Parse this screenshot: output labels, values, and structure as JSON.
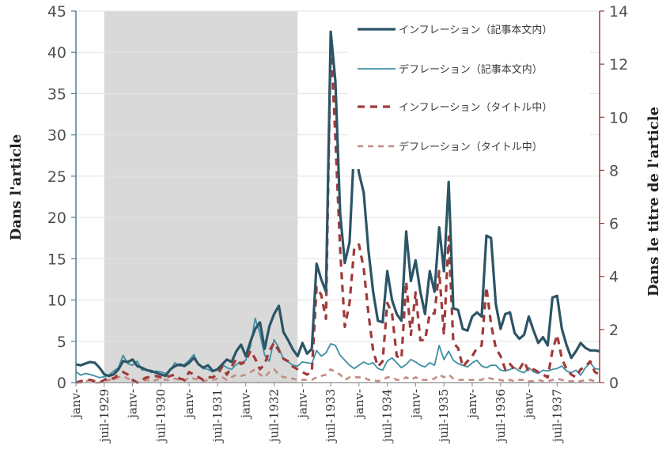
{
  "chart_data": {
    "type": "line",
    "xlabel": "",
    "ylabel_left": "Dans l'article",
    "ylabel_right": "Dans le titre de l'article",
    "ylim_left": [
      0,
      45
    ],
    "ylim_right": [
      0,
      14
    ],
    "yticks_left": [
      0,
      5,
      10,
      15,
      20,
      25,
      30,
      35,
      40,
      45
    ],
    "yticks_right": [
      0,
      2,
      4,
      6,
      8,
      10,
      12,
      14
    ],
    "x_start": "1929-01",
    "x_end": "1937-12",
    "x_tick_labels": [
      "janv-",
      "juil-1929",
      "janv-",
      "juil-1930",
      "janv-",
      "juil-1931",
      "janv-",
      "juil-1932",
      "janv-",
      "juil-1933",
      "janv-",
      "juil-1934",
      "janv-",
      "juil-1935",
      "janv-",
      "juil-1936",
      "janv-",
      "juil-1937"
    ],
    "shaded_region": {
      "start": "1929-07",
      "end": "1932-12"
    },
    "grid": "horizontal",
    "legend_position": "top-right",
    "series": [
      {
        "name": "インフレーション（記事本文内）",
        "axis": "left",
        "color": "#2c5566",
        "style": "solid-thick",
        "values": [
          2.2,
          2.1,
          2.3,
          2.5,
          2.4,
          1.8,
          1.0,
          0.8,
          1.0,
          1.6,
          2.6,
          2.5,
          2.8,
          2.0,
          1.8,
          1.5,
          1.4,
          1.2,
          1.0,
          0.8,
          1.6,
          2.0,
          2.2,
          2.0,
          2.4,
          3.0,
          2.2,
          1.8,
          2.1,
          1.4,
          1.6,
          2.2,
          2.8,
          2.5,
          3.8,
          4.6,
          3.2,
          5.0,
          6.5,
          7.3,
          4.1,
          6.8,
          8.3,
          9.3,
          6.1,
          5.1,
          4.0,
          3.2,
          4.8,
          3.5,
          4.1,
          14.4,
          12.5,
          11.0,
          42.5,
          36.5,
          20.5,
          14.5,
          17.0,
          29.0,
          25.4,
          23.0,
          16.0,
          11.0,
          7.5,
          7.3,
          13.5,
          10.0,
          8.3,
          7.5,
          18.3,
          12.3,
          14.8,
          11.0,
          8.3,
          13.5,
          11.0,
          18.8,
          13.5,
          24.3,
          9.0,
          8.8,
          6.5,
          6.3,
          8.0,
          8.5,
          8.0,
          17.8,
          17.5,
          9.5,
          6.5,
          8.3,
          8.5,
          6.0,
          5.3,
          5.8,
          8.0,
          6.3,
          4.8,
          5.5,
          4.5,
          10.3,
          10.5,
          6.5,
          4.5,
          3.0,
          3.8,
          4.8,
          4.2,
          3.9,
          3.9,
          3.8
        ]
      },
      {
        "name": "デフレーション（記事本文内）",
        "axis": "left",
        "color": "#3e8fa3",
        "style": "solid-thin",
        "values": [
          1.3,
          0.9,
          1.1,
          1.0,
          0.8,
          0.6,
          0.7,
          0.9,
          1.4,
          1.8,
          3.3,
          2.3,
          2.1,
          2.6,
          1.5,
          1.6,
          1.2,
          1.4,
          1.3,
          1.1,
          1.5,
          2.4,
          2.0,
          2.2,
          2.7,
          3.4,
          2.2,
          1.7,
          1.6,
          1.3,
          1.7,
          2.2,
          1.8,
          1.6,
          2.2,
          2.4,
          2.7,
          4.4,
          7.8,
          5.9,
          3.3,
          2.6,
          5.2,
          4.2,
          2.8,
          2.5,
          2.1,
          2.0,
          2.5,
          2.4,
          2.3,
          3.9,
          3.2,
          3.6,
          4.7,
          4.5,
          3.3,
          2.7,
          2.1,
          1.7,
          2.1,
          2.5,
          2.2,
          2.4,
          1.7,
          1.5,
          2.6,
          3.0,
          2.4,
          1.8,
          2.2,
          2.8,
          2.5,
          2.1,
          1.9,
          2.4,
          2.1,
          4.5,
          2.8,
          3.8,
          2.7,
          2.3,
          2.1,
          1.9,
          2.4,
          2.7,
          2.0,
          1.8,
          2.1,
          2.1,
          1.5,
          1.4,
          1.6,
          1.8,
          1.4,
          1.2,
          1.8,
          1.3,
          1.1,
          1.5,
          1.4,
          1.6,
          1.7,
          2.0,
          1.4,
          1.2,
          1.5,
          0.9,
          1.8,
          2.4,
          1.7,
          1.6
        ]
      },
      {
        "name": "インフレーション（タイトル中）",
        "axis": "right",
        "color": "#a03a3a",
        "style": "dashed-thick",
        "values": [
          0.0,
          0.05,
          0.1,
          0.1,
          0.05,
          0.0,
          0.1,
          0.2,
          0.15,
          0.3,
          0.4,
          0.3,
          0.1,
          0.0,
          0.1,
          0.2,
          0.2,
          0.25,
          0.2,
          0.2,
          0.25,
          0.3,
          0.15,
          0.1,
          0.4,
          0.3,
          0.2,
          0.1,
          0.2,
          0.2,
          0.3,
          0.6,
          0.3,
          0.6,
          0.9,
          0.7,
          0.8,
          1.2,
          0.9,
          0.5,
          0.7,
          1.2,
          1.5,
          1.2,
          0.9,
          0.8,
          0.6,
          0.5,
          0.4,
          0.3,
          0.4,
          3.6,
          3.3,
          2.4,
          13.0,
          9.2,
          5.0,
          2.1,
          3.0,
          5.1,
          5.2,
          4.3,
          2.6,
          1.2,
          0.6,
          0.8,
          3.0,
          2.6,
          1.0,
          0.9,
          3.8,
          1.8,
          3.4,
          1.6,
          1.6,
          2.6,
          2.6,
          4.2,
          1.8,
          5.5,
          1.5,
          1.3,
          0.6,
          0.8,
          1.0,
          1.3,
          1.4,
          3.6,
          2.2,
          1.3,
          1.0,
          0.5,
          0.7,
          0.5,
          0.5,
          0.8,
          0.4,
          0.5,
          0.4,
          0.3,
          0.2,
          1.2,
          1.8,
          0.9,
          0.5,
          0.3,
          0.2,
          0.5,
          0.6,
          0.8,
          0.4,
          0.3
        ]
      },
      {
        "name": "デフレーション（タイトル中）",
        "axis": "right",
        "color": "#c48b84",
        "style": "dashed-thin",
        "values": [
          0.0,
          0.0,
          0.05,
          0.1,
          0.0,
          0.0,
          0.05,
          0.1,
          0.1,
          0.2,
          0.25,
          0.15,
          0.1,
          0.0,
          0.05,
          0.1,
          0.05,
          0.1,
          0.15,
          0.1,
          0.1,
          0.15,
          0.1,
          0.05,
          0.2,
          0.15,
          0.1,
          0.05,
          0.1,
          0.1,
          0.15,
          0.2,
          0.1,
          0.2,
          0.3,
          0.25,
          0.3,
          0.4,
          0.5,
          0.3,
          0.2,
          0.4,
          0.5,
          0.3,
          0.2,
          0.2,
          0.15,
          0.1,
          0.1,
          0.1,
          0.1,
          0.2,
          0.25,
          0.3,
          0.5,
          0.4,
          0.3,
          0.1,
          0.2,
          0.2,
          0.2,
          0.2,
          0.1,
          0.1,
          0.05,
          0.1,
          0.2,
          0.2,
          0.1,
          0.1,
          0.2,
          0.1,
          0.2,
          0.1,
          0.1,
          0.1,
          0.15,
          0.3,
          0.2,
          0.3,
          0.15,
          0.1,
          0.1,
          0.1,
          0.1,
          0.1,
          0.1,
          0.2,
          0.15,
          0.1,
          0.1,
          0.05,
          0.1,
          0.05,
          0.1,
          0.1,
          0.05,
          0.05,
          0.1,
          0.05,
          0.05,
          0.1,
          0.15,
          0.1,
          0.05,
          0.05,
          0.05,
          0.05,
          0.1,
          0.1,
          0.05,
          0.05
        ]
      }
    ]
  }
}
